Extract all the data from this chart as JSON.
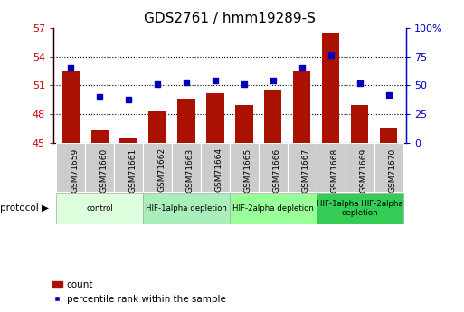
{
  "title": "GDS2761 / hmm19289-S",
  "samples": [
    "GSM71659",
    "GSM71660",
    "GSM71661",
    "GSM71662",
    "GSM71663",
    "GSM71664",
    "GSM71665",
    "GSM71666",
    "GSM71667",
    "GSM71668",
    "GSM71669",
    "GSM71670"
  ],
  "counts": [
    52.5,
    46.3,
    45.5,
    48.3,
    49.5,
    50.2,
    49.0,
    50.5,
    52.5,
    56.5,
    49.0,
    46.5
  ],
  "percentile_ranks": [
    65,
    40,
    38,
    51,
    53,
    54,
    51,
    54,
    65,
    76,
    52,
    42
  ],
  "bar_bottom": 45,
  "ylim_left": [
    45,
    57
  ],
  "ylim_right": [
    0,
    100
  ],
  "yticks_left": [
    45,
    48,
    51,
    54,
    57
  ],
  "yticks_right": [
    0,
    25,
    50,
    75,
    100
  ],
  "ytick_labels_right": [
    "0",
    "25",
    "50",
    "75",
    "100%"
  ],
  "bar_color": "#aa1100",
  "dot_color": "#0000bb",
  "bg_color": "#ffffff",
  "protocol_groups": [
    {
      "label": "control",
      "start": 0,
      "end": 3,
      "color": "#ddffdd"
    },
    {
      "label": "HIF-1alpha depletion",
      "start": 3,
      "end": 6,
      "color": "#aaeebb"
    },
    {
      "label": "HIF-2alpha depletion",
      "start": 6,
      "end": 9,
      "color": "#99ff99"
    },
    {
      "label": "HIF-1alpha HIF-2alpha\ndepletion",
      "start": 9,
      "end": 12,
      "color": "#33cc55"
    }
  ],
  "ylabel_left_color": "#cc0000",
  "ylabel_right_color": "#0000cc",
  "tick_fontsize": 8,
  "title_fontsize": 11,
  "sample_box_color": "#cccccc"
}
